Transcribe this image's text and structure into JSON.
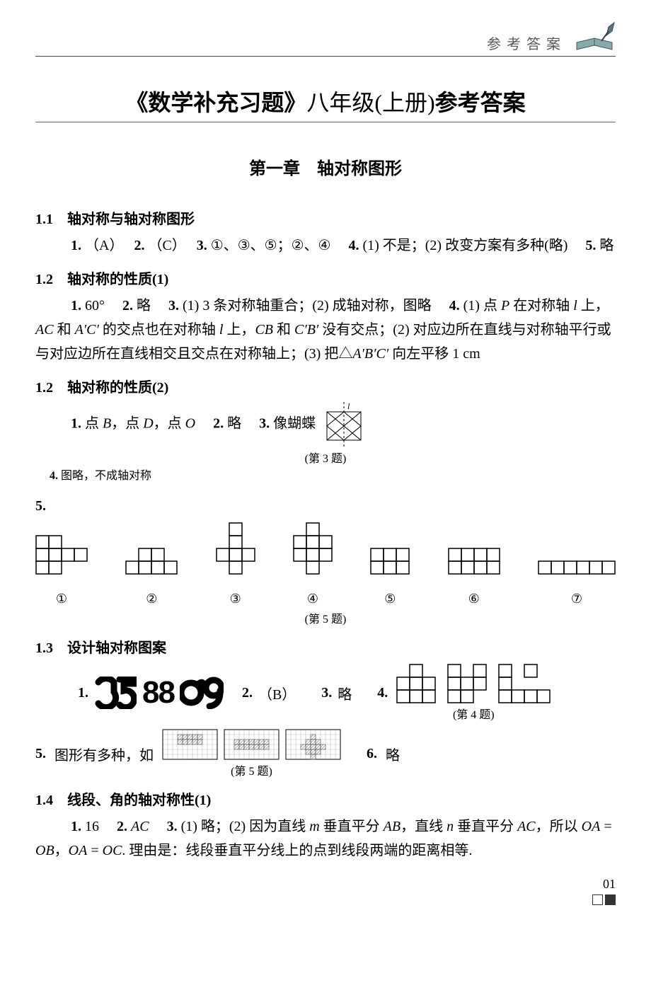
{
  "colors": {
    "text": "#000000",
    "subtext": "#5a5a5a",
    "rule": "#444444",
    "grid_gray": "#bdbdbd",
    "hatch": "#a8a8a8",
    "background": "#ffffff"
  },
  "header": {
    "label": "参考答案"
  },
  "title": {
    "left": "《数学补充习题》",
    "mid": "八年级(上册)",
    "right": "参考答案"
  },
  "chapter": "第一章　轴对称图形",
  "s11": {
    "head": "1.1　轴对称与轴对称图形",
    "q1": {
      "n": "1.",
      "a": "（A）"
    },
    "q2": {
      "n": "2.",
      "a": "（C）"
    },
    "q3": {
      "n": "3.",
      "a": "①、③、⑤；②、④"
    },
    "q4": {
      "n": "4.",
      "a": "(1) 不是；(2) 改变方案有多种(略)"
    },
    "q5": {
      "n": "5.",
      "a": "略"
    }
  },
  "s12a": {
    "head": "1.2　轴对称的性质(1)",
    "q1": {
      "n": "1.",
      "a": "60°"
    },
    "q2": {
      "n": "2.",
      "a": "略"
    },
    "q3": {
      "n": "3.",
      "a": "(1) 3 条对称轴重合；(2) 成轴对称，图略"
    },
    "q4": {
      "n": "4.",
      "a_pre": "(1) 点 ",
      "a_body": "P 在对称轴 l 上，AC 和 A′C′ 的交点也在对称轴 l 上，CB 和 C′B′ 没有交点；(2) 对应边所在直线与对称轴平行或与对应边所在直线相交且交点在对称轴上；(3) 把△A′B′C′ 向左平移 1 cm"
    }
  },
  "s12b": {
    "head": "1.2　轴对称的性质(2)",
    "q1": {
      "n": "1.",
      "a": "点 B，点 D，点 O"
    },
    "q2": {
      "n": "2.",
      "a": "略"
    },
    "q3": {
      "n": "3.",
      "a": "像蝴蝶",
      "cap": "(第 3 题)",
      "axis_label": "l"
    },
    "q4": {
      "n": "4.",
      "a": "图略，不成轴对称"
    },
    "q5": {
      "n": "5.",
      "cap": "(第 5 题)",
      "labels": [
        "①",
        "②",
        "③",
        "④",
        "⑤",
        "⑥",
        "⑦"
      ],
      "shapes": [
        {
          "cell": 18,
          "cells": [
            [
              0,
              0
            ],
            [
              1,
              0
            ],
            [
              0,
              1
            ],
            [
              1,
              1
            ],
            [
              2,
              1
            ],
            [
              3,
              1
            ],
            [
              0,
              2
            ],
            [
              1,
              2
            ]
          ]
        },
        {
          "cell": 18,
          "cells": [
            [
              1,
              0
            ],
            [
              2,
              0
            ],
            [
              0,
              1
            ],
            [
              1,
              1
            ],
            [
              2,
              1
            ],
            [
              3,
              1
            ]
          ]
        },
        {
          "cell": 18,
          "cells": [
            [
              1,
              0
            ],
            [
              1,
              1
            ],
            [
              0,
              2
            ],
            [
              1,
              2
            ],
            [
              2,
              2
            ],
            [
              1,
              3
            ]
          ]
        },
        {
          "cell": 18,
          "cells": [
            [
              1,
              0
            ],
            [
              0,
              1
            ],
            [
              1,
              1
            ],
            [
              2,
              1
            ],
            [
              0,
              2
            ],
            [
              1,
              2
            ],
            [
              2,
              2
            ],
            [
              1,
              3
            ]
          ]
        },
        {
          "cell": 18,
          "cells": [
            [
              0,
              0
            ],
            [
              1,
              0
            ],
            [
              2,
              0
            ],
            [
              0,
              1
            ],
            [
              1,
              1
            ],
            [
              2,
              1
            ]
          ]
        },
        {
          "cell": 18,
          "cells": [
            [
              0,
              0
            ],
            [
              1,
              0
            ],
            [
              2,
              0
            ],
            [
              3,
              0
            ],
            [
              0,
              1
            ],
            [
              1,
              1
            ],
            [
              2,
              1
            ],
            [
              3,
              1
            ]
          ]
        },
        {
          "cell": 18,
          "cells": [
            [
              0,
              0
            ],
            [
              1,
              0
            ],
            [
              2,
              0
            ],
            [
              3,
              0
            ],
            [
              4,
              0
            ],
            [
              5,
              0
            ]
          ]
        }
      ]
    }
  },
  "s13": {
    "head": "1.3　设计轴对称图案",
    "q1": {
      "n": "1.",
      "groups": [
        "25",
        "88",
        "09"
      ]
    },
    "q2": {
      "n": "2.",
      "a": "（B）"
    },
    "q3": {
      "n": "3.",
      "a": "略"
    },
    "q4": {
      "n": "4.",
      "cap": "(第 4 题)",
      "cell": 18,
      "shapes": [
        {
          "cells": [
            [
              1,
              0
            ],
            [
              0,
              1
            ],
            [
              1,
              1
            ],
            [
              2,
              1
            ],
            [
              0,
              2
            ],
            [
              1,
              2
            ],
            [
              2,
              2
            ]
          ]
        },
        {
          "cells": [
            [
              0,
              0
            ],
            [
              2,
              0
            ],
            [
              0,
              1
            ],
            [
              1,
              1
            ],
            [
              2,
              1
            ],
            [
              0,
              2
            ],
            [
              1,
              2
            ]
          ]
        },
        {
          "cells": [
            [
              0,
              0
            ],
            [
              2,
              0
            ],
            [
              0,
              1
            ],
            [
              0,
              2
            ],
            [
              1,
              2
            ],
            [
              2,
              2
            ],
            [
              3,
              2
            ]
          ]
        }
      ]
    },
    "q5": {
      "n": "5.",
      "pre": "图形有多种，如",
      "cap": "(第 5 题)",
      "grid": {
        "cols": 11,
        "rows": 6,
        "cell": 7
      },
      "patterns": [
        {
          "fill": [
            [
              3,
              1
            ],
            [
              4,
              1
            ],
            [
              5,
              1
            ],
            [
              6,
              1
            ],
            [
              7,
              1
            ],
            [
              3,
              2
            ],
            [
              4,
              2
            ],
            [
              5,
              2
            ],
            [
              6,
              2
            ],
            [
              7,
              2
            ]
          ]
        },
        {
          "fill": [
            [
              2,
              2
            ],
            [
              3,
              2
            ],
            [
              4,
              2
            ],
            [
              5,
              2
            ],
            [
              6,
              2
            ],
            [
              7,
              2
            ],
            [
              8,
              2
            ],
            [
              2,
              3
            ],
            [
              3,
              3
            ],
            [
              4,
              3
            ],
            [
              5,
              3
            ],
            [
              6,
              3
            ],
            [
              7,
              3
            ],
            [
              8,
              3
            ]
          ]
        },
        {
          "fill": [
            [
              5,
              1
            ],
            [
              4,
              2
            ],
            [
              5,
              2
            ],
            [
              6,
              2
            ],
            [
              3,
              3
            ],
            [
              4,
              3
            ],
            [
              5,
              3
            ],
            [
              6,
              3
            ],
            [
              7,
              3
            ],
            [
              4,
              4
            ],
            [
              5,
              4
            ],
            [
              6,
              4
            ],
            [
              5,
              5
            ]
          ]
        }
      ]
    },
    "q6": {
      "n": "6.",
      "a": "略"
    }
  },
  "s14": {
    "head": "1.4　线段、角的轴对称性(1)",
    "q1": {
      "n": "1.",
      "a": "16"
    },
    "q2": {
      "n": "2.",
      "a": "AC"
    },
    "q3": {
      "n": "3.",
      "a": "(1) 略；(2) 因为直线 m 垂直平分 AB，直线 n 垂直平分 AC，所以 OA = OB，OA = OC. 理由是：线段垂直平分线上的点到线段两端的距离相等."
    }
  },
  "page_number": "01"
}
